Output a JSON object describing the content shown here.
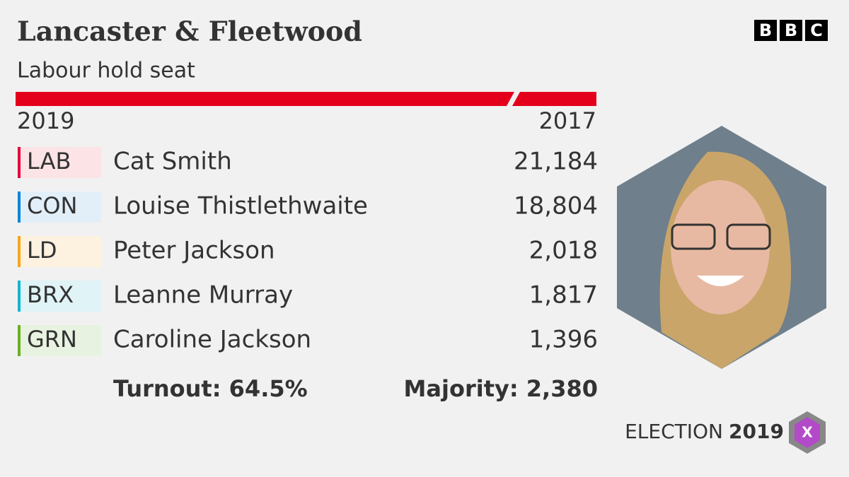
{
  "header": {
    "title": "Lancaster & Fleetwood",
    "subtitle": "Labour hold seat",
    "year_left": "2019",
    "year_right": "2017",
    "bar_color": "#e4001b"
  },
  "logo": {
    "letters": [
      "B",
      "B",
      "C"
    ]
  },
  "results": [
    {
      "party": "LAB",
      "candidate": "Cat Smith",
      "votes": "21,184",
      "color": "#e4003b",
      "tint": "#fbe3e6"
    },
    {
      "party": "CON",
      "candidate": "Louise Thistlethwaite",
      "votes": "18,804",
      "color": "#0087dc",
      "tint": "#e2eff9"
    },
    {
      "party": "LD",
      "candidate": "Peter Jackson",
      "votes": "2,018",
      "color": "#faa61a",
      "tint": "#fdf1e0"
    },
    {
      "party": "BRX",
      "candidate": "Leanne Murray",
      "votes": "1,817",
      "color": "#12b6cf",
      "tint": "#e0f3f6"
    },
    {
      "party": "GRN",
      "candidate": "Caroline Jackson",
      "votes": "1,396",
      "color": "#6ab023",
      "tint": "#e8f2e1"
    }
  ],
  "footer": {
    "turnout": "Turnout: 64.5%",
    "majority": "Majority: 2,380",
    "election": "ELECTION",
    "year": "2019",
    "badge": "X"
  }
}
